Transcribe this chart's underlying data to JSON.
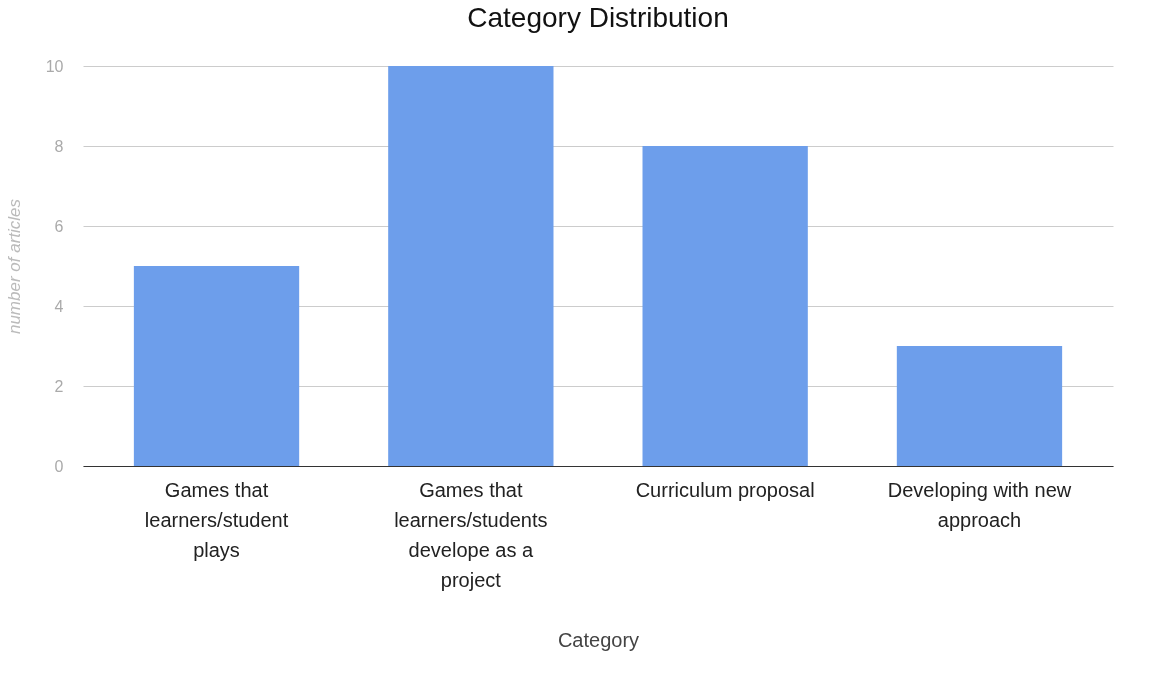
{
  "chart_data": {
    "type": "bar",
    "title": "Category Distribution",
    "xlabel": "Category",
    "ylabel": "number of articles",
    "categories": [
      "Games that learners/student plays",
      "Games that learners/students develope as a project",
      "Curriculum proposal",
      "Developing with new approach"
    ],
    "values": [
      5,
      10,
      8,
      3
    ],
    "color": "#6d9eeb",
    "ylim": [
      0,
      10
    ],
    "yticks": [
      0,
      2,
      4,
      6,
      8,
      10
    ],
    "grid": "y"
  }
}
